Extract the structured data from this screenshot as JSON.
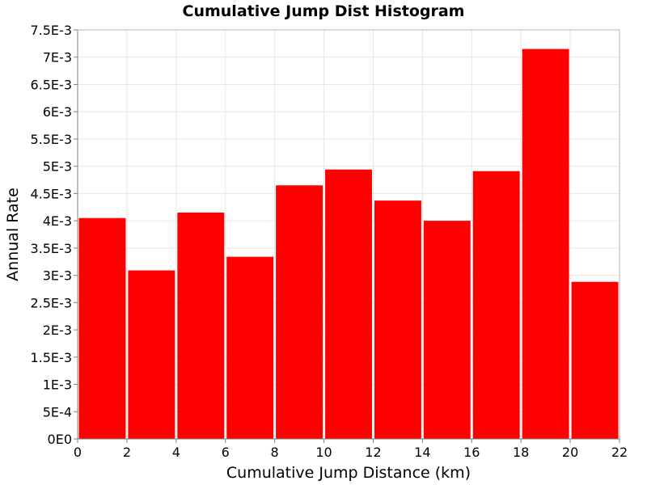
{
  "chart_data": {
    "type": "bar",
    "title": "Cumulative Jump Dist Histogram",
    "xlabel": "Cumulative Jump Distance (km)",
    "ylabel": "Annual Rate",
    "xlim": [
      0,
      22
    ],
    "ylim": [
      0,
      0.0075
    ],
    "grid": true,
    "bar_color": "#ff0000",
    "bin_width": 2,
    "bins": [
      {
        "x_start": 0,
        "x_end": 2,
        "value": 0.00405
      },
      {
        "x_start": 2,
        "x_end": 4,
        "value": 0.00309
      },
      {
        "x_start": 4,
        "x_end": 6,
        "value": 0.00415
      },
      {
        "x_start": 6,
        "x_end": 8,
        "value": 0.00334
      },
      {
        "x_start": 8,
        "x_end": 10,
        "value": 0.00465
      },
      {
        "x_start": 10,
        "x_end": 12,
        "value": 0.00494
      },
      {
        "x_start": 12,
        "x_end": 14,
        "value": 0.00437
      },
      {
        "x_start": 14,
        "x_end": 16,
        "value": 0.004
      },
      {
        "x_start": 16,
        "x_end": 18,
        "value": 0.00491
      },
      {
        "x_start": 18,
        "x_end": 20,
        "value": 0.00715
      },
      {
        "x_start": 20,
        "x_end": 22,
        "value": 0.00288
      }
    ],
    "x_ticks": [
      {
        "value": 0,
        "label": "0"
      },
      {
        "value": 2,
        "label": "2"
      },
      {
        "value": 4,
        "label": "4"
      },
      {
        "value": 6,
        "label": "6"
      },
      {
        "value": 8,
        "label": "8"
      },
      {
        "value": 10,
        "label": "10"
      },
      {
        "value": 12,
        "label": "12"
      },
      {
        "value": 14,
        "label": "14"
      },
      {
        "value": 16,
        "label": "16"
      },
      {
        "value": 18,
        "label": "18"
      },
      {
        "value": 20,
        "label": "20"
      },
      {
        "value": 22,
        "label": "22"
      }
    ],
    "y_ticks": [
      {
        "value": 0,
        "label": "0E0"
      },
      {
        "value": 0.0005,
        "label": "5E-4"
      },
      {
        "value": 0.001,
        "label": "1E-3"
      },
      {
        "value": 0.0015,
        "label": "1.5E-3"
      },
      {
        "value": 0.002,
        "label": "2E-3"
      },
      {
        "value": 0.0025,
        "label": "2.5E-3"
      },
      {
        "value": 0.003,
        "label": "3E-3"
      },
      {
        "value": 0.0035,
        "label": "3.5E-3"
      },
      {
        "value": 0.004,
        "label": "4E-3"
      },
      {
        "value": 0.0045,
        "label": "4.5E-3"
      },
      {
        "value": 0.005,
        "label": "5E-3"
      },
      {
        "value": 0.0055,
        "label": "5.5E-3"
      },
      {
        "value": 0.006,
        "label": "6E-3"
      },
      {
        "value": 0.0065,
        "label": "6.5E-3"
      },
      {
        "value": 0.007,
        "label": "7E-3"
      },
      {
        "value": 0.0075,
        "label": "7.5E-3"
      }
    ]
  }
}
